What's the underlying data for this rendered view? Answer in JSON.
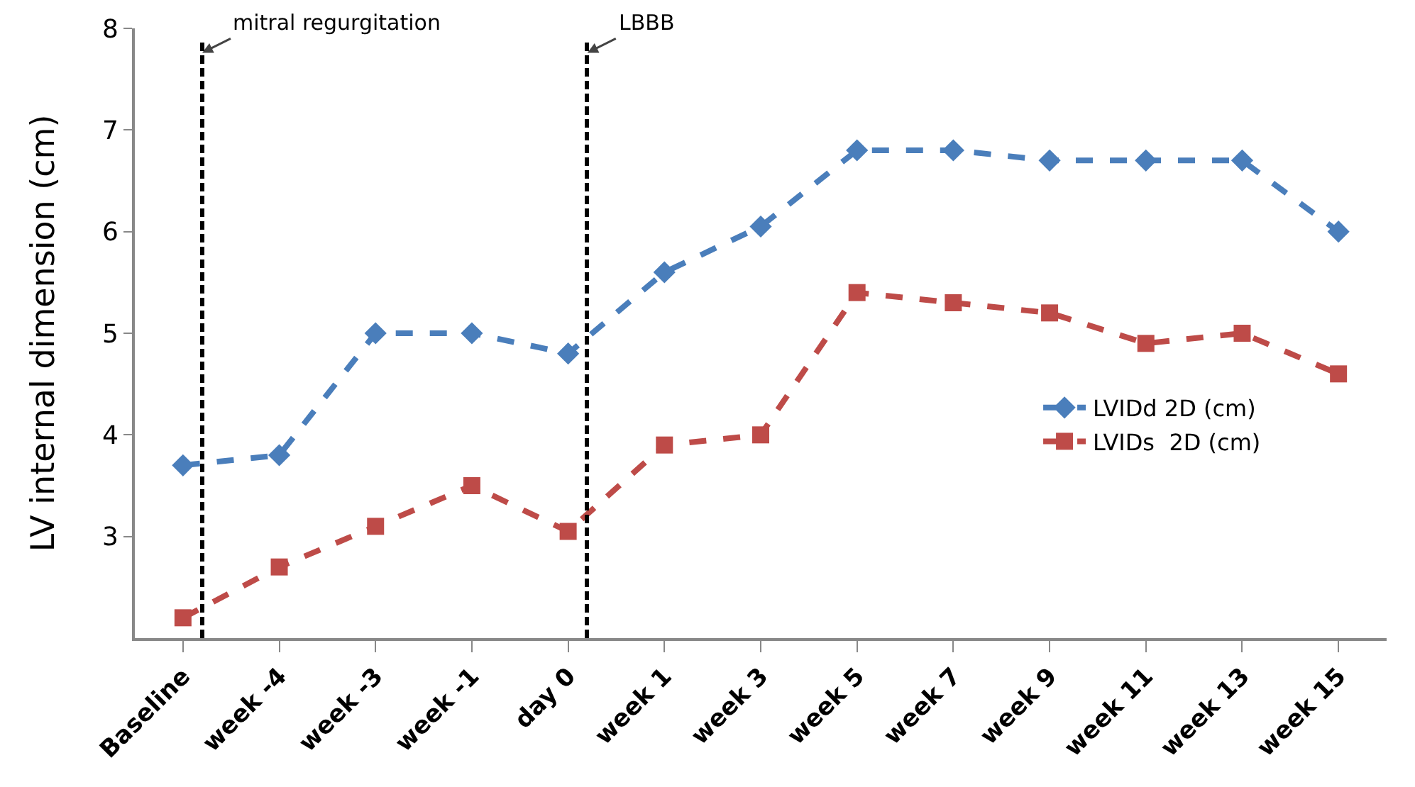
{
  "chart_data": {
    "type": "line",
    "ylabel": "LV internal dimension (cm)",
    "categories": [
      "Baseline",
      "week -4",
      "week -3",
      "week -1",
      "day 0",
      "week 1",
      "week 3",
      "week 5",
      "week 7",
      "week 9",
      "week 11",
      "week 13",
      "week 15"
    ],
    "series": [
      {
        "name": "LVIDd 2D (cm)",
        "color": "#4a7ebb",
        "marker": "diamond",
        "values": [
          3.7,
          3.8,
          5.0,
          5.0,
          4.8,
          5.6,
          6.05,
          6.8,
          6.8,
          6.7,
          6.7,
          6.7,
          6.0
        ]
      },
      {
        "name": "LVIDs  2D (cm)",
        "color": "#be4b48",
        "marker": "square",
        "values": [
          2.2,
          2.7,
          3.1,
          3.5,
          3.05,
          3.9,
          4.0,
          5.4,
          5.3,
          5.2,
          4.9,
          5.0,
          4.6
        ]
      }
    ],
    "ylim": [
      2,
      8
    ],
    "yticks": [
      3,
      4,
      5,
      6,
      7,
      8
    ],
    "grid": false,
    "legend": "right",
    "line_style": "dashed",
    "annotations": [
      "mitral regurgitation",
      "LBBB"
    ]
  }
}
